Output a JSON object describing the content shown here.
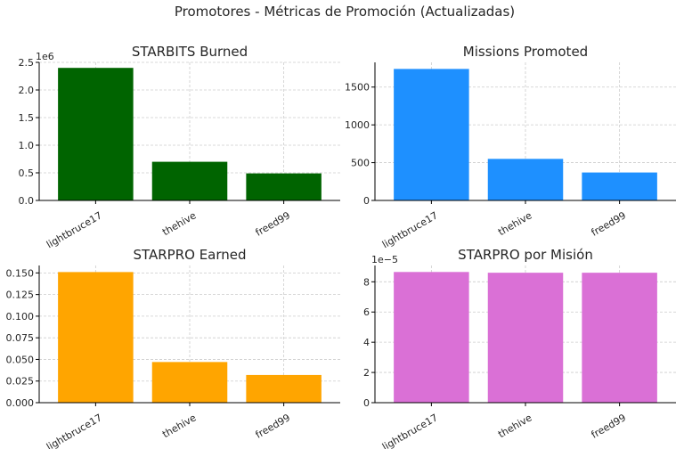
{
  "figure_title": "Promotores - Métricas de Promoción (Actualizadas)",
  "chart_data": [
    {
      "type": "bar",
      "title": "STARBITS Burned",
      "categories": [
        "lightbruce17",
        "thehive",
        "freed99"
      ],
      "values": [
        2400000,
        700000,
        490000
      ],
      "ylim": [
        0,
        2500000
      ],
      "yticks": [
        0,
        0.5,
        1.0,
        1.5,
        2.0,
        2.5
      ],
      "ytick_labels": [
        "0.0",
        "0.5",
        "1.0",
        "1.5",
        "2.0",
        "2.5"
      ],
      "y_offset_label": "1e6",
      "xlabel": "",
      "ylabel": "",
      "color": "#006400",
      "grid": true
    },
    {
      "type": "bar",
      "title": "Missions Promoted",
      "categories": [
        "lightbruce17",
        "thehive",
        "freed99"
      ],
      "values": [
        1740,
        550,
        370
      ],
      "ylim": [
        0,
        1827
      ],
      "yticks": [
        0,
        500,
        1000,
        1500
      ],
      "ytick_labels": [
        "0",
        "500",
        "1000",
        "1500"
      ],
      "y_offset_label": "",
      "xlabel": "",
      "ylabel": "",
      "color": "#1E90FF",
      "grid": true
    },
    {
      "type": "bar",
      "title": "STARPRO Earned",
      "categories": [
        "lightbruce17",
        "thehive",
        "freed99"
      ],
      "values": [
        0.151,
        0.047,
        0.032
      ],
      "ylim": [
        0,
        0.1586
      ],
      "yticks": [
        0,
        0.025,
        0.05,
        0.075,
        0.1,
        0.125,
        0.15
      ],
      "ytick_labels": [
        "0.000",
        "0.025",
        "0.050",
        "0.075",
        "0.100",
        "0.125",
        "0.150"
      ],
      "y_offset_label": "",
      "xlabel": "",
      "ylabel": "",
      "color": "#FFA500",
      "grid": true
    },
    {
      "type": "bar",
      "title": "STARPRO por Misión",
      "categories": [
        "lightbruce17",
        "thehive",
        "freed99"
      ],
      "values": [
        8.65e-05,
        8.6e-05,
        8.6e-05
      ],
      "ylim": [
        0,
        9.08e-05
      ],
      "yticks": [
        0,
        2,
        4,
        6,
        8
      ],
      "ytick_labels": [
        "0",
        "2",
        "4",
        "6",
        "8"
      ],
      "y_offset_label": "1e−5",
      "xlabel": "",
      "ylabel": "",
      "color": "#DA70D6",
      "grid": true
    }
  ]
}
